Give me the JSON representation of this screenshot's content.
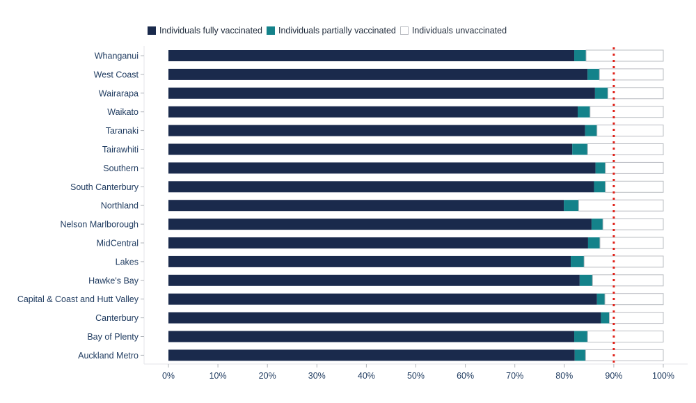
{
  "legend": {
    "full": "Individuals fully vaccinated",
    "partial": "Individuals partially vaccinated",
    "unvax": "Individuals unvaccinated"
  },
  "colors": {
    "full": "#1a2a4c",
    "partial": "#14828a",
    "unvax": "#ffffff",
    "unvax_border": "#b9bcc2",
    "target_line": "#e0231b",
    "axis_text": "#1e3a5f"
  },
  "chart_data": {
    "type": "bar",
    "orientation": "horizontal",
    "stacked": true,
    "categories": [
      "Whanganui",
      "West Coast",
      "Wairarapa",
      "Waikato",
      "Taranaki",
      "Tairawhiti",
      "Southern",
      "South Canterbury",
      "Northland",
      "Nelson Marlborough",
      "MidCentral",
      "Lakes",
      "Hawke's Bay",
      "Capital & Coast and Hutt Valley",
      "Canterbury",
      "Bay of Plenty",
      "Auckland Metro"
    ],
    "series": [
      {
        "name": "Individuals fully vaccinated",
        "values": [
          82.0,
          84.7,
          86.2,
          82.7,
          84.2,
          81.6,
          86.3,
          86.0,
          79.9,
          85.5,
          84.8,
          81.3,
          83.1,
          86.6,
          87.4,
          82.0,
          82.1
        ]
      },
      {
        "name": "Individuals partially vaccinated",
        "values": [
          2.4,
          2.4,
          2.6,
          2.5,
          2.4,
          3.1,
          2.0,
          2.3,
          3.0,
          2.3,
          2.4,
          2.7,
          2.6,
          1.6,
          1.7,
          2.7,
          2.2
        ]
      },
      {
        "name": "Individuals unvaccinated",
        "values": [
          15.6,
          12.9,
          11.2,
          14.8,
          13.4,
          15.3,
          11.7,
          11.7,
          17.1,
          12.2,
          12.8,
          16.0,
          14.3,
          11.8,
          10.9,
          15.3,
          15.7
        ]
      }
    ],
    "xlim": [
      0,
      100
    ],
    "xticks": [
      "0%",
      "10%",
      "20%",
      "30%",
      "40%",
      "50%",
      "60%",
      "70%",
      "80%",
      "90%",
      "100%"
    ],
    "target_line": 90,
    "title": "",
    "xlabel": "",
    "ylabel": "",
    "grid": false,
    "legend_position": "top"
  }
}
